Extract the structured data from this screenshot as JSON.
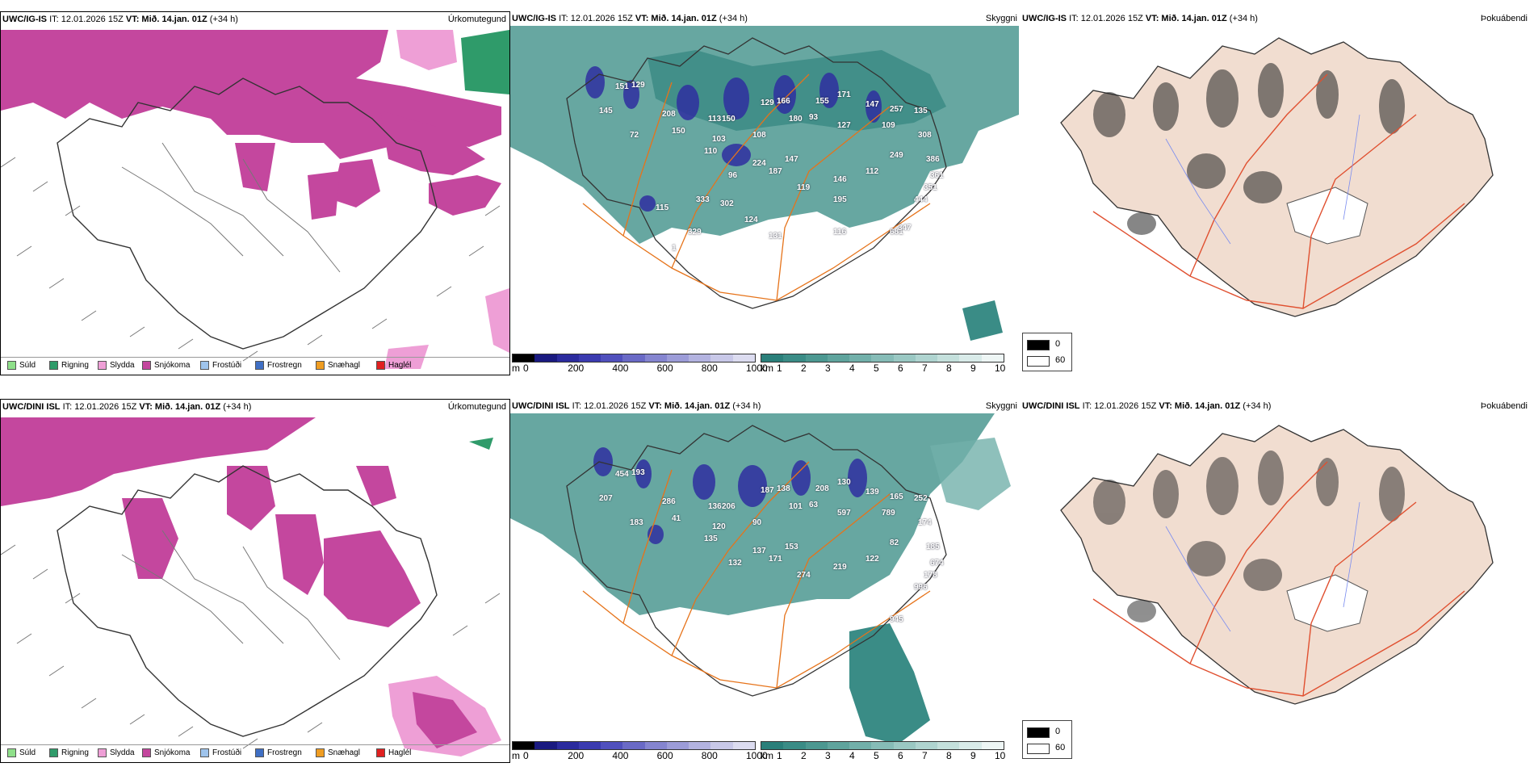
{
  "colors": {
    "snow": "#c4479e",
    "rain": "#2f9b6a",
    "sleet": "#ee9fd6",
    "cloud": "#3f9b93",
    "highcloud": "#2f2fa0",
    "land": "#f1ddd0",
    "roads": "#e6731a",
    "redroads": "#e05030",
    "rivers": "#7a8cf0"
  },
  "rows": [
    {
      "model": "UWC/IG-IS",
      "it_label": "IT: 12.01.2026 15Z",
      "vt_label": "VT: Mið. 14.jan. 01Z",
      "lead": "(+34 h)",
      "cloud_numbers": [
        "151",
        "129",
        "145",
        "208",
        "113",
        "150",
        "129",
        "166",
        "155",
        "171",
        "147",
        "257",
        "135",
        "72",
        "150",
        "103",
        "108",
        "180",
        "93",
        "127",
        "109",
        "308",
        "386",
        "361",
        "351",
        "444",
        "110",
        "224",
        "147",
        "96",
        "187",
        "119",
        "146",
        "112",
        "249",
        "681",
        "333",
        "302",
        "115",
        "195",
        "329",
        "124",
        "131",
        "116",
        "347",
        "1"
      ]
    },
    {
      "model": "UWC/DINI ISL",
      "it_label": "IT: 12.01.2026 15Z",
      "vt_label": "VT: Mið. 14.jan. 01Z",
      "lead": "(+34 h)",
      "cloud_numbers": [
        "454",
        "193",
        "207",
        "286",
        "136",
        "206",
        "187",
        "138",
        "208",
        "130",
        "139",
        "165",
        "252",
        "183",
        "41",
        "120",
        "90",
        "101",
        "63",
        "597",
        "789",
        "174",
        "185",
        "674",
        "178",
        "996",
        "135",
        "137",
        "153",
        "132",
        "171",
        "274",
        "219",
        "122",
        "82",
        "945"
      ]
    }
  ],
  "panels": {
    "precip_type": "Úrkomutegund",
    "cloud": "Skyggni",
    "fog": "Þokuábendi"
  },
  "precip_legend": [
    {
      "label": "Súld",
      "color": "#8fe08a"
    },
    {
      "label": "Rigning",
      "color": "#2f9b6a"
    },
    {
      "label": "Slydda",
      "color": "#ee9fd6"
    },
    {
      "label": "Snjókoma",
      "color": "#c4479e"
    },
    {
      "label": "Frostúði",
      "color": "#9fc4ec"
    },
    {
      "label": "Frostregn",
      "color": "#3f6fc4"
    },
    {
      "label": "Snæhagl",
      "color": "#ef9d22"
    },
    {
      "label": "Haglél",
      "color": "#e02020"
    }
  ],
  "cloud_colorbar": {
    "m_unit": "m",
    "m_ticks": [
      "0",
      "200",
      "400",
      "600",
      "800",
      "1000"
    ],
    "m_colors": [
      "#000000",
      "#1a1a80",
      "#2b2b9e",
      "#3b3bb0",
      "#5050bd",
      "#6a6ac6",
      "#8585d0",
      "#9c9cd8",
      "#b3b3e0",
      "#c8c8e8",
      "#dcdcf0"
    ],
    "km_unit": "km",
    "km_ticks": [
      "1",
      "2",
      "3",
      "4",
      "5",
      "6",
      "7",
      "8",
      "9",
      "10"
    ],
    "km_colors": [
      "#2a7f7a",
      "#3a8c86",
      "#4c9891",
      "#5fa49d",
      "#72b0aa",
      "#86bcb7",
      "#9ac8c3",
      "#afd4d0",
      "#c4e0dc",
      "#d9ebe9",
      "#eef6f5"
    ]
  },
  "fog_legend": [
    {
      "label": "0",
      "color": "#000000"
    },
    {
      "label": "60",
      "color": "#ffffff"
    }
  ]
}
